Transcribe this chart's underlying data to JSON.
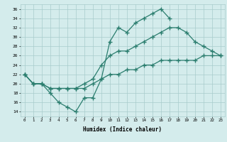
{
  "x_jagged": [
    0,
    1,
    2,
    3,
    4,
    5,
    6,
    7,
    8,
    9,
    10,
    11,
    12,
    13,
    14,
    15,
    16,
    17
  ],
  "y_jagged": [
    22,
    20,
    20,
    18,
    16,
    15,
    14,
    17,
    17,
    21,
    29,
    32,
    31,
    33,
    34,
    35,
    36,
    34
  ],
  "x_mid": [
    0,
    1,
    2,
    3,
    4,
    5,
    6,
    7,
    8,
    9,
    10,
    11,
    12,
    13,
    14,
    15,
    16,
    17,
    18,
    19,
    20,
    21,
    22,
    23
  ],
  "y_mid": [
    22,
    20,
    20,
    19,
    19,
    19,
    19,
    20,
    21,
    24,
    26,
    27,
    27,
    28,
    29,
    30,
    31,
    32,
    32,
    31,
    29,
    28,
    27,
    26
  ],
  "x_low": [
    0,
    1,
    2,
    3,
    4,
    5,
    6,
    7,
    8,
    9,
    10,
    11,
    12,
    13,
    14,
    15,
    16,
    17,
    18,
    19,
    20,
    21,
    22,
    23
  ],
  "y_low": [
    22,
    20,
    20,
    19,
    19,
    19,
    19,
    19,
    20,
    21,
    22,
    22,
    23,
    23,
    24,
    24,
    25,
    25,
    25,
    25,
    25,
    26,
    26,
    26
  ],
  "line_color": "#2a7d6e",
  "bg_color": "#d4ecec",
  "grid_color": "#a8cccc",
  "xlabel": "Humidex (Indice chaleur)",
  "ylim": [
    13,
    37
  ],
  "xlim": [
    -0.5,
    23.5
  ],
  "yticks": [
    14,
    16,
    18,
    20,
    22,
    24,
    26,
    28,
    30,
    32,
    34,
    36
  ],
  "xticks": [
    0,
    1,
    2,
    3,
    4,
    5,
    6,
    7,
    8,
    9,
    10,
    11,
    12,
    13,
    14,
    15,
    16,
    17,
    18,
    19,
    20,
    21,
    22,
    23
  ],
  "xtick_labels": [
    "0",
    "1",
    "2",
    "3",
    "4",
    "5",
    "6",
    "7",
    "8",
    "9",
    "10",
    "11",
    "12",
    "13",
    "14",
    "15",
    "16",
    "17",
    "18",
    "19",
    "20",
    "21",
    "22",
    "23"
  ],
  "marker": "+",
  "marker_size": 4,
  "marker_ew": 1.0,
  "linewidth": 0.9
}
